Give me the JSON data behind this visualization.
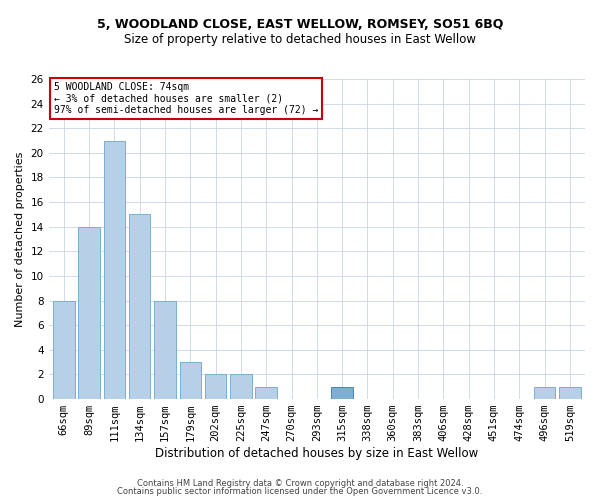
{
  "title1": "5, WOODLAND CLOSE, EAST WELLOW, ROMSEY, SO51 6BQ",
  "title2": "Size of property relative to detached houses in East Wellow",
  "xlabel": "Distribution of detached houses by size in East Wellow",
  "ylabel": "Number of detached properties",
  "footer1": "Contains HM Land Registry data © Crown copyright and database right 2024.",
  "footer2": "Contains public sector information licensed under the Open Government Licence v3.0.",
  "annotation_title": "5 WOODLAND CLOSE: 74sqm",
  "annotation_line1": "← 3% of detached houses are smaller (2)",
  "annotation_line2": "97% of semi-detached houses are larger (72) →",
  "categories": [
    "66sqm",
    "89sqm",
    "111sqm",
    "134sqm",
    "157sqm",
    "179sqm",
    "202sqm",
    "225sqm",
    "247sqm",
    "270sqm",
    "293sqm",
    "315sqm",
    "338sqm",
    "360sqm",
    "383sqm",
    "406sqm",
    "428sqm",
    "451sqm",
    "474sqm",
    "496sqm",
    "519sqm"
  ],
  "values": [
    8,
    14,
    21,
    15,
    8,
    3,
    2,
    2,
    1,
    0,
    0,
    1,
    0,
    0,
    0,
    0,
    0,
    0,
    0,
    1,
    1
  ],
  "highlight_index": 11,
  "bar_color": "#b8cfe8",
  "highlight_color": "#7bafd4",
  "bar_edgecolor": "#7bafd4",
  "highlight_edgecolor": "#4a86b8",
  "annotation_box_edgecolor": "#cc0000",
  "bg_color": "#ffffff",
  "grid_color": "#c8d4e8",
  "ylim": [
    0,
    26
  ],
  "yticks": [
    0,
    2,
    4,
    6,
    8,
    10,
    12,
    14,
    16,
    18,
    20,
    22,
    24,
    26
  ],
  "title1_fontsize": 9,
  "title2_fontsize": 8.5,
  "xlabel_fontsize": 8.5,
  "ylabel_fontsize": 8,
  "tick_fontsize": 7.5,
  "annotation_fontsize": 7,
  "footer_fontsize": 6
}
